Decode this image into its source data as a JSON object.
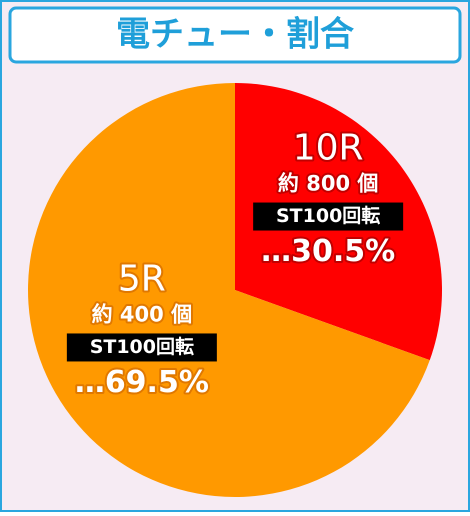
{
  "chart_data": {
    "type": "pie",
    "title": "電チュー・割合",
    "categories": [
      "10R",
      "5R"
    ],
    "values": [
      30.5,
      69.5
    ],
    "value_labels": [
      "…30.5%",
      "…69.5%"
    ],
    "colors": [
      "#ff0000",
      "#ff9900"
    ],
    "details": [
      [
        "約 800 個",
        "ST100回転"
      ],
      [
        "約 400 個",
        "ST100回転"
      ]
    ]
  }
}
